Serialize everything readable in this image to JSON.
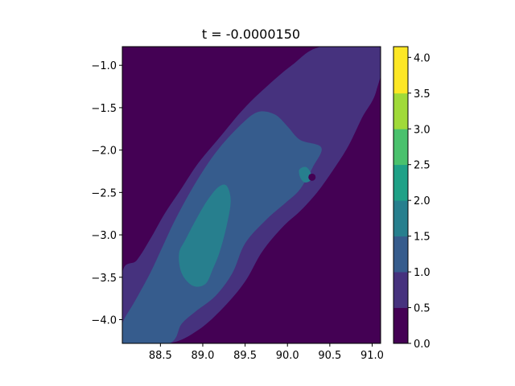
{
  "chart_data": {
    "type": "heatmap",
    "subtype": "filled-contour",
    "title": "t = -0.0000150",
    "xlabel": "",
    "ylabel": "",
    "xlim": [
      88.05,
      91.1
    ],
    "ylim": [
      -4.28,
      -0.78
    ],
    "x_ticks": [
      88.5,
      89.0,
      89.5,
      90.0,
      90.5,
      91.0
    ],
    "x_tick_labels": [
      "88.5",
      "89.0",
      "89.5",
      "90.0",
      "90.5",
      "91.0"
    ],
    "y_ticks": [
      -1.0,
      -1.5,
      -2.0,
      -2.5,
      -3.0,
      -3.5,
      -4.0
    ],
    "y_tick_labels": [
      "−1.0",
      "−1.5",
      "−2.0",
      "−2.5",
      "−3.0",
      "−3.5",
      "−4.0"
    ],
    "colormap": "viridis",
    "colorbar": {
      "range": [
        0.0,
        4.15
      ],
      "levels": [
        0.0,
        0.5,
        1.0,
        1.5,
        2.0,
        2.5,
        3.0,
        3.5,
        4.15
      ],
      "tick_values": [
        0.0,
        0.5,
        1.0,
        1.5,
        2.0,
        2.5,
        3.0,
        3.5,
        4.0
      ],
      "tick_labels": [
        "0.0",
        "0.5",
        "1.0",
        "1.5",
        "2.0",
        "2.5",
        "3.0",
        "3.5",
        "4.0"
      ],
      "band_colors": [
        "#440154",
        "#46327e",
        "#365c8d",
        "#277f8e",
        "#1fa187",
        "#4ac16d",
        "#a0da39",
        "#fde725"
      ]
    },
    "regions": [
      {
        "level": 1,
        "color": "#46327e",
        "desc": "lower-left to upper-right diagonal band",
        "points": [
          [
            88.05,
            -4.28
          ],
          [
            88.6,
            -4.28
          ],
          [
            88.95,
            -4.12
          ],
          [
            89.25,
            -3.85
          ],
          [
            89.5,
            -3.55
          ],
          [
            89.7,
            -3.2
          ],
          [
            89.95,
            -2.9
          ],
          [
            90.15,
            -2.72
          ],
          [
            90.35,
            -2.5
          ],
          [
            90.55,
            -2.22
          ],
          [
            90.72,
            -1.95
          ],
          [
            90.88,
            -1.62
          ],
          [
            91.05,
            -1.3
          ],
          [
            91.1,
            -0.78
          ],
          [
            90.4,
            -0.78
          ],
          [
            90.05,
            -1.0
          ],
          [
            89.7,
            -1.3
          ],
          [
            89.45,
            -1.55
          ],
          [
            89.2,
            -1.85
          ],
          [
            88.95,
            -2.15
          ],
          [
            88.75,
            -2.45
          ],
          [
            88.55,
            -2.75
          ],
          [
            88.38,
            -3.05
          ],
          [
            88.22,
            -3.3
          ],
          [
            88.05,
            -3.45
          ]
        ]
      },
      {
        "level": 2,
        "color": "#365c8d",
        "desc": "central blue-teal ridge",
        "points": [
          [
            88.05,
            -4.28
          ],
          [
            88.6,
            -4.28
          ],
          [
            88.75,
            -4.05
          ],
          [
            88.92,
            -3.9
          ],
          [
            89.15,
            -3.72
          ],
          [
            89.35,
            -3.45
          ],
          [
            89.5,
            -3.1
          ],
          [
            89.75,
            -2.82
          ],
          [
            89.98,
            -2.62
          ],
          [
            90.15,
            -2.46
          ],
          [
            90.3,
            -2.2
          ],
          [
            90.4,
            -1.97
          ],
          [
            90.15,
            -1.88
          ],
          [
            90.0,
            -1.72
          ],
          [
            89.85,
            -1.58
          ],
          [
            89.65,
            -1.55
          ],
          [
            89.45,
            -1.7
          ],
          [
            89.2,
            -1.97
          ],
          [
            89.0,
            -2.25
          ],
          [
            88.82,
            -2.55
          ],
          [
            88.66,
            -2.85
          ],
          [
            88.52,
            -3.15
          ],
          [
            88.38,
            -3.45
          ],
          [
            88.2,
            -3.78
          ],
          [
            88.05,
            -4.05
          ]
        ]
      },
      {
        "level": 3,
        "color": "#277f8e",
        "desc": "green-teal core",
        "points": [
          [
            88.88,
            -3.6
          ],
          [
            89.03,
            -3.58
          ],
          [
            89.12,
            -3.4
          ],
          [
            89.2,
            -3.2
          ],
          [
            89.28,
            -2.9
          ],
          [
            89.33,
            -2.6
          ],
          [
            89.28,
            -2.42
          ],
          [
            89.18,
            -2.44
          ],
          [
            89.05,
            -2.6
          ],
          [
            88.92,
            -2.82
          ],
          [
            88.8,
            -3.05
          ],
          [
            88.72,
            -3.22
          ],
          [
            88.75,
            -3.45
          ]
        ]
      },
      {
        "level": 3,
        "color": "#277f8e",
        "desc": "small teal spot",
        "points": [
          [
            90.14,
            -2.23
          ],
          [
            90.22,
            -2.2
          ],
          [
            90.28,
            -2.28
          ],
          [
            90.27,
            -2.36
          ],
          [
            90.2,
            -2.38
          ],
          [
            90.15,
            -2.32
          ]
        ]
      }
    ],
    "marker": {
      "x": 90.29,
      "y": -2.32,
      "color": "#440154"
    }
  }
}
